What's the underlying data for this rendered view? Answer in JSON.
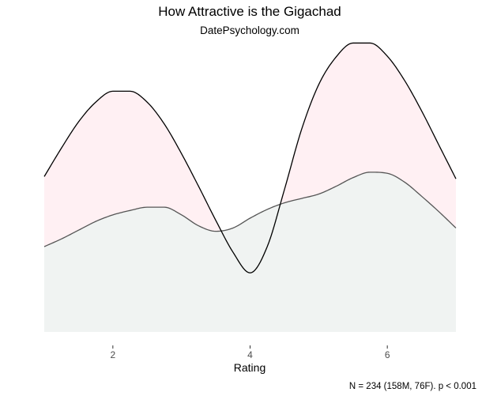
{
  "chart_data": {
    "type": "area",
    "title": "How Attractive is the Gigachad",
    "subtitle": "DatePsychology.com",
    "xlabel": "Rating",
    "ylabel": "",
    "caption": "N = 234 (158M, 76F). p < 0.001",
    "xlim": [
      1,
      7
    ],
    "ylim": [
      0,
      0.26
    ],
    "x_ticks": [
      2,
      4,
      6
    ],
    "grid": false,
    "legend": "none",
    "series": [
      {
        "fill": "#fff0f3",
        "fill_positive_difference": "#f0fffd",
        "stroke": "#000000",
        "x": [
          1.0,
          1.25,
          1.5,
          1.75,
          2.0,
          2.25,
          2.5,
          2.75,
          3.0,
          3.25,
          3.5,
          3.75,
          4.0,
          4.25,
          4.5,
          4.75,
          5.0,
          5.25,
          5.5,
          5.75,
          6.0,
          6.25,
          6.5,
          6.75,
          7.0
        ],
        "y": [
          0.142,
          0.168,
          0.192,
          0.21,
          0.22,
          0.22,
          0.21,
          0.19,
          0.163,
          0.133,
          0.102,
          0.073,
          0.054,
          0.078,
          0.13,
          0.185,
          0.226,
          0.251,
          0.264,
          0.264,
          0.252,
          0.23,
          0.202,
          0.171,
          0.14
        ]
      },
      {
        "fill": "#f0f3f2",
        "stroke": "#555555",
        "x": [
          1.0,
          1.25,
          1.5,
          1.75,
          2.0,
          2.25,
          2.5,
          2.75,
          3.0,
          3.25,
          3.5,
          3.75,
          4.0,
          4.25,
          4.5,
          4.75,
          5.0,
          5.25,
          5.5,
          5.75,
          6.0,
          6.25,
          6.5,
          6.75,
          7.0
        ],
        "y": [
          0.078,
          0.085,
          0.093,
          0.101,
          0.107,
          0.111,
          0.114,
          0.114,
          0.107,
          0.097,
          0.092,
          0.095,
          0.104,
          0.112,
          0.118,
          0.122,
          0.126,
          0.133,
          0.141,
          0.146,
          0.145,
          0.137,
          0.124,
          0.11,
          0.095
        ]
      }
    ]
  }
}
